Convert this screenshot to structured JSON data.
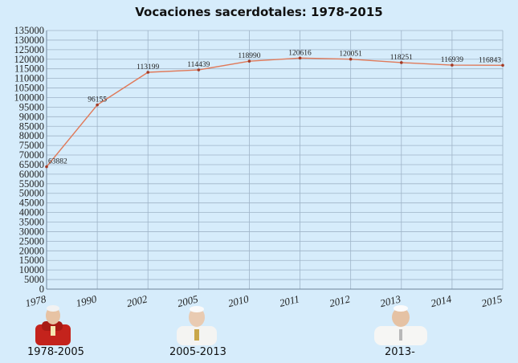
{
  "title": "Vocaciones sacerdotales: 1978-2015",
  "chart_data": {
    "type": "line",
    "title": "Vocaciones sacerdotales: 1978-2015",
    "categories": [
      "1978",
      "1990",
      "2002",
      "2005",
      "2010",
      "2011",
      "2012",
      "2013",
      "2014",
      "2015"
    ],
    "series": [
      {
        "values": [
          63882,
          96155,
          113199,
          114439,
          118990,
          120616,
          120051,
          118251,
          116939,
          116843
        ]
      }
    ],
    "data_labels": [
      "63882",
      "96155",
      "113199",
      "114439",
      "118990",
      "120616",
      "120051",
      "118251",
      "116939",
      "116843"
    ],
    "ylim": [
      0,
      135000
    ],
    "ytick_step": 5000,
    "grid": true,
    "line_color": "#e07a5a",
    "grid_color": "#9fb4c8"
  },
  "captions": [
    "1978-2005",
    "2005-2013",
    "2013-"
  ]
}
